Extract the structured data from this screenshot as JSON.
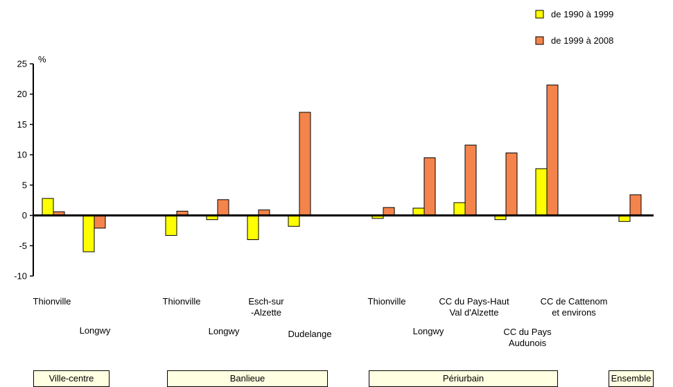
{
  "chart_data": {
    "type": "bar",
    "ylabel": "%",
    "ylim": [
      -10,
      25
    ],
    "yticks": [
      "25",
      "20",
      "15",
      "10",
      "5",
      "0",
      "-5",
      "-10"
    ],
    "legend_position": "top-right",
    "series": [
      {
        "name": "de 1990 à 1999",
        "color": "#ffff00",
        "values": [
          2.8,
          -6.0,
          -3.3,
          -0.7,
          -4.0,
          -1.8,
          -0.5,
          1.2,
          2.1,
          -0.7,
          7.7,
          -1.0
        ]
      },
      {
        "name": "de 1999 à 2008",
        "color": "#f4844c",
        "values": [
          0.6,
          -2.1,
          0.7,
          2.6,
          0.9,
          17.0,
          1.3,
          9.5,
          11.6,
          10.3,
          21.5,
          3.4
        ]
      }
    ],
    "categories": [
      "Thionville",
      "Longwy",
      "Thionville",
      "Longwy",
      "Esch-sur -Alzette",
      "Dudelange",
      "Thionville",
      "Longwy",
      "CC du Pays-Haut Val d'Alzette",
      "CC du Pays Audunois",
      "CC de Cattenom et environs",
      "Ensemble"
    ],
    "category_labels": [
      {
        "lines": [
          "Thionville"
        ]
      },
      {
        "lines": [
          "Longwy"
        ]
      },
      {
        "lines": [
          "Thionville"
        ]
      },
      {
        "lines": [
          "Longwy"
        ]
      },
      {
        "lines": [
          "Esch-sur",
          "-Alzette"
        ]
      },
      {
        "lines": [
          "Dudelange"
        ]
      },
      {
        "lines": [
          "Thionville"
        ]
      },
      {
        "lines": [
          "Longwy"
        ]
      },
      {
        "lines": [
          "CC du Pays-Haut",
          "Val d'Alzette"
        ]
      },
      {
        "lines": [
          "CC du Pays",
          "Audunois"
        ]
      },
      {
        "lines": [
          "CC de Cattenom",
          "et environs"
        ]
      },
      {
        "lines": []
      }
    ],
    "groups": [
      "Ville-centre",
      "Banlieue",
      "Périurbain",
      "Ensemble"
    ]
  }
}
